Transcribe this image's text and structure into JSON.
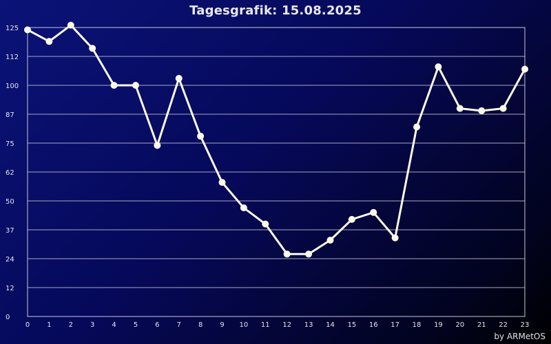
{
  "chart_data": {
    "type": "line",
    "title": "Tagesgrafik: 15.08.2025",
    "credit": "by ARMetOS",
    "xlabel": "",
    "ylabel": "",
    "x": [
      0,
      1,
      2,
      3,
      4,
      5,
      6,
      7,
      8,
      9,
      10,
      11,
      12,
      13,
      14,
      15,
      16,
      17,
      18,
      19,
      20,
      21,
      22,
      23
    ],
    "x_ticks": [
      "0",
      "1",
      "2",
      "3",
      "4",
      "5",
      "6",
      "7",
      "8",
      "9",
      "10",
      "11",
      "12",
      "13",
      "14",
      "15",
      "16",
      "17",
      "18",
      "19",
      "20",
      "21",
      "22",
      "23"
    ],
    "y_ticks": [
      "0",
      "12",
      "24",
      "37",
      "50",
      "62",
      "75",
      "87",
      "100",
      "112",
      "125"
    ],
    "y_tick_values": [
      0,
      12.5,
      25,
      37.5,
      50,
      62.5,
      75,
      87.5,
      100,
      112.5,
      125
    ],
    "ylim": [
      0,
      125
    ],
    "xlim": [
      0,
      23
    ],
    "grid": "horizontal",
    "series": [
      {
        "values": [
          124,
          119,
          126,
          116,
          100,
          100,
          74,
          103,
          78,
          58,
          47,
          40,
          27,
          27,
          33,
          42,
          45,
          34,
          82,
          108,
          90,
          89,
          90,
          107
        ]
      }
    ],
    "colors": {
      "line": "#fdfbe8",
      "marker": "#fdfbe8",
      "grid": "#a8a8c0",
      "frame": "#c8c8d8"
    }
  }
}
